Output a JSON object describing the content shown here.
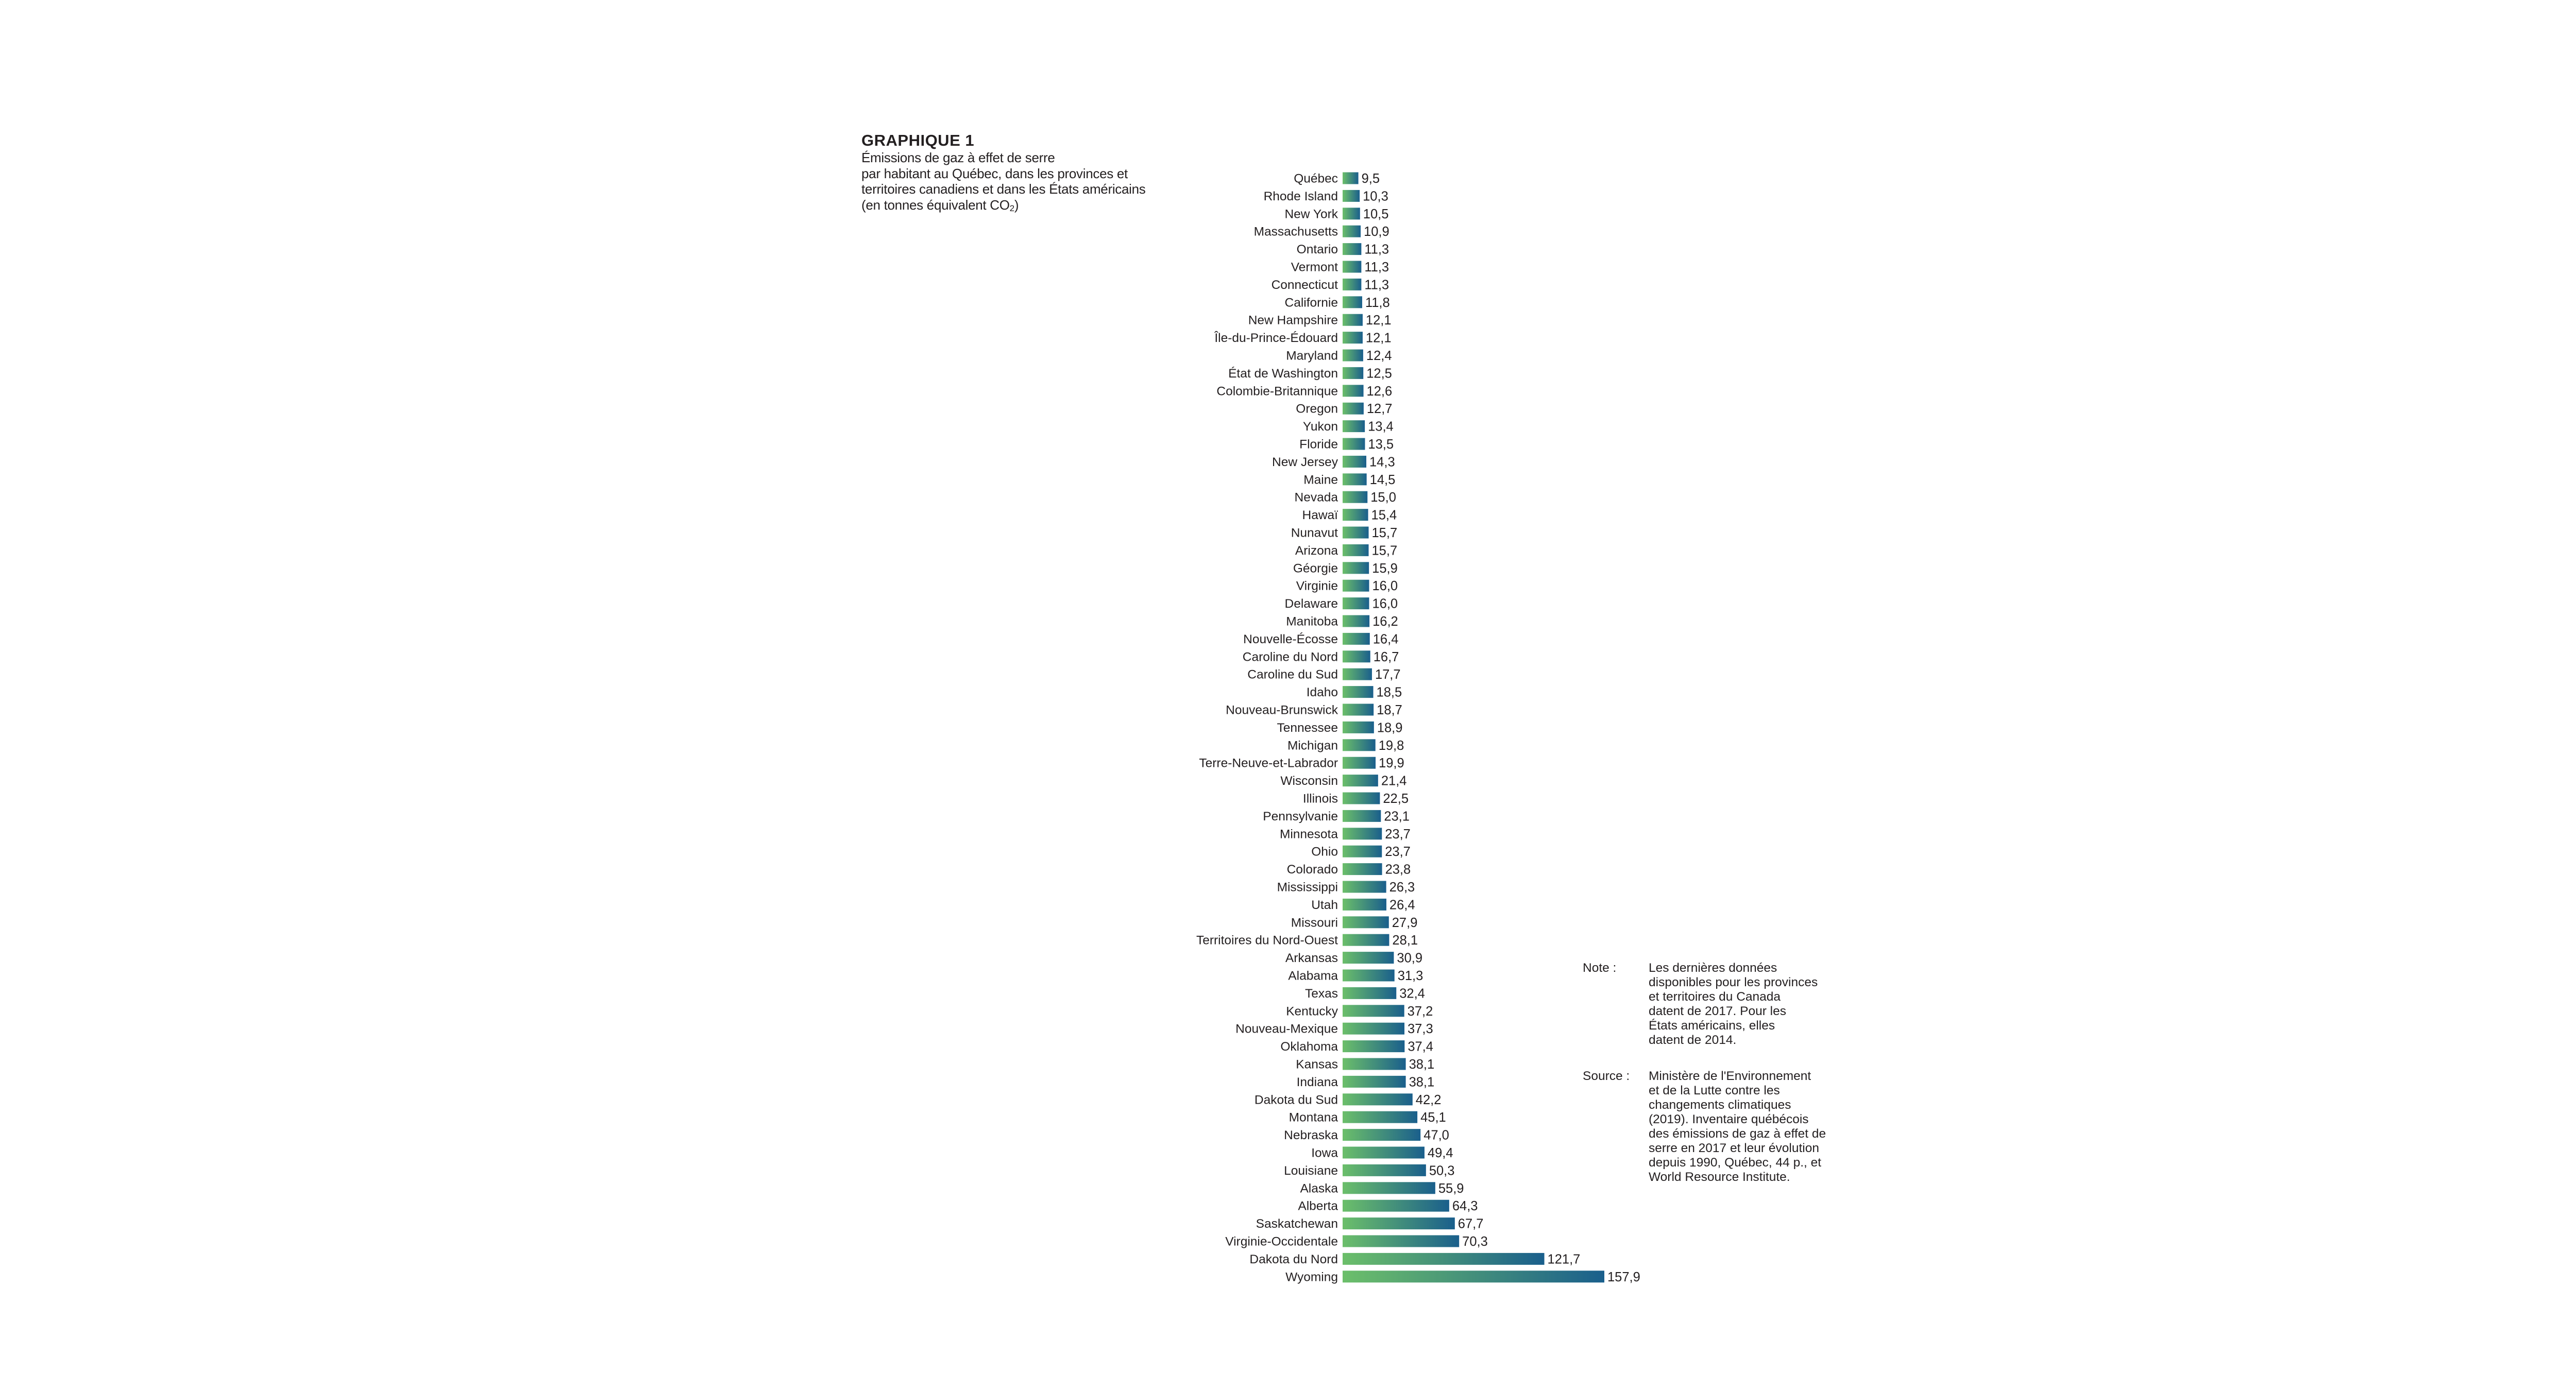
{
  "header": {
    "title": "GRAPHIQUE 1",
    "subtitle_lines": [
      "Émissions de gaz à effet de serre",
      "par habitant au Québec, dans les provinces et",
      "territoires canadiens et dans les États américains"
    ],
    "unit_prefix": "(en tonnes équivalent CO",
    "unit_sub": "2",
    "unit_suffix": ")"
  },
  "notes": {
    "note_label": "Note :",
    "note_lines": [
      "Les dernières données",
      "disponibles pour les provinces",
      "et territoires du Canada",
      "datent de 2017. Pour les",
      "États américains, elles",
      "datent de 2014."
    ],
    "source_label": "Source :",
    "source_lines": [
      "Ministère de l'Environnement",
      "et de la Lutte contre les",
      "changements climatiques",
      "(2019). Inventaire québécois",
      "des émissions de gaz à effet de",
      "serre en 2017 et leur évolution",
      "depuis 1990, Québec, 44 p., et",
      "World Resource Institute."
    ]
  },
  "chart_data": {
    "type": "bar",
    "orientation": "horizontal",
    "title": "GRAPHIQUE 1",
    "xlabel": "",
    "ylabel": "",
    "xlim": [
      0,
      157.9
    ],
    "grid": false,
    "colors": {
      "start": "#6cbf6a",
      "end": "#1a5f8c"
    },
    "categories": [
      "Québec",
      "Rhode Island",
      "New York",
      "Massachusetts",
      "Ontario",
      "Vermont",
      "Connecticut",
      "Californie",
      "New Hampshire",
      "Île-du-Prince-Édouard",
      "Maryland",
      "État de Washington",
      "Colombie-Britannique",
      "Oregon",
      "Yukon",
      "Floride",
      "New Jersey",
      "Maine",
      "Nevada",
      "Hawaï",
      "Nunavut",
      "Arizona",
      "Géorgie",
      "Virginie",
      "Delaware",
      "Manitoba",
      "Nouvelle-Écosse",
      "Caroline du Nord",
      "Caroline du Sud",
      "Idaho",
      "Nouveau-Brunswick",
      "Tennessee",
      "Michigan",
      "Terre-Neuve-et-Labrador",
      "Wisconsin",
      "Illinois",
      "Pennsylvanie",
      "Minnesota",
      "Ohio",
      "Colorado",
      "Mississippi",
      "Utah",
      "Missouri",
      "Territoires du Nord-Ouest",
      "Arkansas",
      "Alabama",
      "Texas",
      "Kentucky",
      "Nouveau-Mexique",
      "Oklahoma",
      "Kansas",
      "Indiana",
      "Dakota du Sud",
      "Montana",
      "Nebraska",
      "Iowa",
      "Louisiane",
      "Alaska",
      "Alberta",
      "Saskatchewan",
      "Virginie-Occidentale",
      "Dakota du Nord",
      "Wyoming"
    ],
    "values": [
      9.5,
      10.3,
      10.5,
      10.9,
      11.3,
      11.3,
      11.3,
      11.8,
      12.1,
      12.1,
      12.4,
      12.5,
      12.6,
      12.7,
      13.4,
      13.5,
      14.3,
      14.5,
      15.0,
      15.4,
      15.7,
      15.7,
      15.9,
      16.0,
      16.0,
      16.2,
      16.4,
      16.7,
      17.7,
      18.5,
      18.7,
      18.9,
      19.8,
      19.9,
      21.4,
      22.5,
      23.1,
      23.7,
      23.7,
      23.8,
      26.3,
      26.4,
      27.9,
      28.1,
      30.9,
      31.3,
      32.4,
      37.2,
      37.3,
      37.4,
      38.1,
      38.1,
      42.2,
      45.1,
      47.0,
      49.4,
      50.3,
      55.9,
      64.3,
      67.7,
      70.3,
      121.7,
      157.9
    ],
    "value_labels": [
      "9,5",
      "10,3",
      "10,5",
      "10,9",
      "11,3",
      "11,3",
      "11,3",
      "11,8",
      "12,1",
      "12,1",
      "12,4",
      "12,5",
      "12,6",
      "12,7",
      "13,4",
      "13,5",
      "14,3",
      "14,5",
      "15,0",
      "15,4",
      "15,7",
      "15,7",
      "15,9",
      "16,0",
      "16,0",
      "16,2",
      "16,4",
      "16,7",
      "17,7",
      "18,5",
      "18,7",
      "18,9",
      "19,8",
      "19,9",
      "21,4",
      "22,5",
      "23,1",
      "23,7",
      "23,7",
      "23,8",
      "26,3",
      "26,4",
      "27,9",
      "28,1",
      "30,9",
      "31,3",
      "32,4",
      "37,2",
      "37,3",
      "37,4",
      "38,1",
      "38,1",
      "42,2",
      "45,1",
      "47,0",
      "49,4",
      "50,3",
      "55,9",
      "64,3",
      "67,7",
      "70,3",
      "121,7",
      "157,9"
    ]
  }
}
